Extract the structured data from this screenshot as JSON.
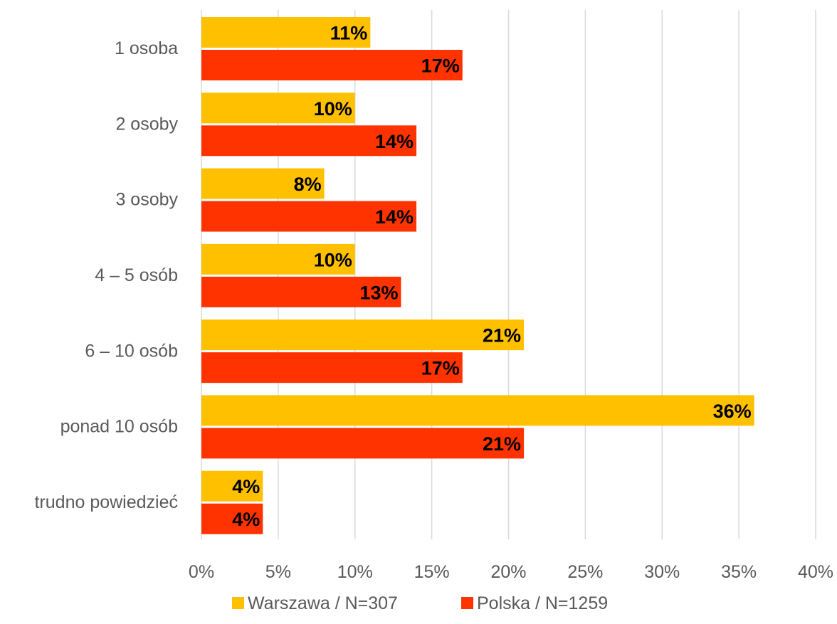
{
  "chart_data": {
    "type": "bar",
    "orientation": "horizontal",
    "title": "",
    "xlabel": "",
    "ylabel": "",
    "categories": [
      "1 osoba",
      "2 osoby",
      "3 osoby",
      "4 – 5 osób",
      "6 – 10 osób",
      "ponad 10 osób",
      "trudno powiedzieć"
    ],
    "series": [
      {
        "name": "Warszawa / N=307",
        "color": "#FFC000",
        "values": [
          11,
          10,
          8,
          10,
          21,
          36,
          4
        ]
      },
      {
        "name": "Polska / N=1259",
        "color": "#FF3300",
        "values": [
          17,
          14,
          14,
          13,
          17,
          21,
          4
        ]
      }
    ],
    "value_suffix": "%",
    "xlim": [
      0,
      40
    ],
    "xticks": [
      "0%",
      "5%",
      "10%",
      "15%",
      "20%",
      "25%",
      "30%",
      "35%",
      "40%"
    ],
    "grid": true,
    "legend_position": "bottom"
  }
}
